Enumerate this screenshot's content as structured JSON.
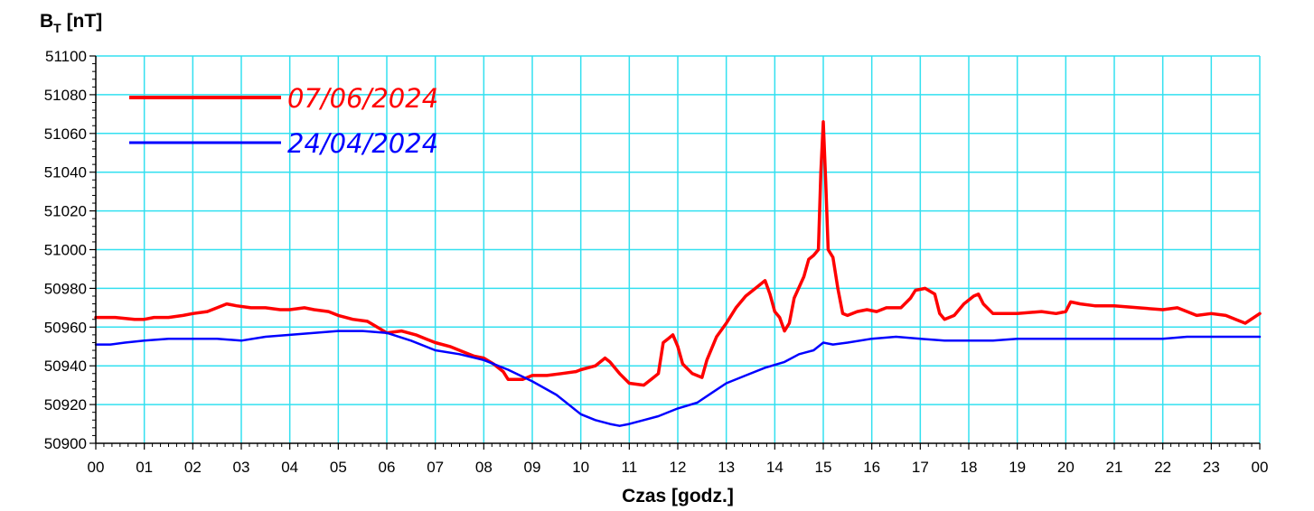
{
  "chart_data": {
    "type": "line",
    "ylabel_main": "B",
    "ylabel_sub": "T",
    "ylabel_unit": " [nT]",
    "xlabel": "Czas [godz.]",
    "xlim": [
      0,
      24
    ],
    "ylim": [
      50900,
      51100
    ],
    "grid": true,
    "legend_position": "top-left",
    "x_ticks": [
      "00",
      "01",
      "02",
      "03",
      "04",
      "05",
      "06",
      "07",
      "08",
      "09",
      "10",
      "11",
      "12",
      "13",
      "14",
      "15",
      "16",
      "17",
      "18",
      "19",
      "20",
      "21",
      "22",
      "23",
      "00"
    ],
    "y_ticks": [
      "51100",
      "51080",
      "51060",
      "51040",
      "51020",
      "51000",
      "50980",
      "50960",
      "50940",
      "50920",
      "50900"
    ],
    "colors": {
      "grid": "#33e0f0",
      "axis": "#000000"
    },
    "series": [
      {
        "name": "07/06/2024",
        "color": "#ff0000",
        "points": [
          [
            0,
            50965
          ],
          [
            0.4,
            50965
          ],
          [
            0.8,
            50964
          ],
          [
            1.0,
            50964
          ],
          [
            1.2,
            50965
          ],
          [
            1.5,
            50965
          ],
          [
            1.8,
            50966
          ],
          [
            2.0,
            50967
          ],
          [
            2.3,
            50968
          ],
          [
            2.5,
            50970
          ],
          [
            2.7,
            50972
          ],
          [
            2.9,
            50971
          ],
          [
            3.2,
            50970
          ],
          [
            3.5,
            50970
          ],
          [
            3.8,
            50969
          ],
          [
            4.0,
            50969
          ],
          [
            4.3,
            50970
          ],
          [
            4.5,
            50969
          ],
          [
            4.8,
            50968
          ],
          [
            5.0,
            50966
          ],
          [
            5.3,
            50964
          ],
          [
            5.6,
            50963
          ],
          [
            5.8,
            50960
          ],
          [
            6.0,
            50957
          ],
          [
            6.3,
            50958
          ],
          [
            6.6,
            50956
          ],
          [
            6.8,
            50954
          ],
          [
            7.0,
            50952
          ],
          [
            7.3,
            50950
          ],
          [
            7.6,
            50947
          ],
          [
            7.8,
            50945
          ],
          [
            8.0,
            50944
          ],
          [
            8.2,
            50941
          ],
          [
            8.4,
            50937
          ],
          [
            8.5,
            50933
          ],
          [
            8.8,
            50933
          ],
          [
            9.0,
            50935
          ],
          [
            9.3,
            50935
          ],
          [
            9.6,
            50936
          ],
          [
            9.9,
            50937
          ],
          [
            10.0,
            50938
          ],
          [
            10.3,
            50940
          ],
          [
            10.5,
            50944
          ],
          [
            10.6,
            50942
          ],
          [
            10.8,
            50936
          ],
          [
            11.0,
            50931
          ],
          [
            11.3,
            50930
          ],
          [
            11.5,
            50934
          ],
          [
            11.6,
            50936
          ],
          [
            11.7,
            50952
          ],
          [
            11.8,
            50954
          ],
          [
            11.9,
            50956
          ],
          [
            12.0,
            50950
          ],
          [
            12.1,
            50941
          ],
          [
            12.3,
            50936
          ],
          [
            12.5,
            50934
          ],
          [
            12.6,
            50943
          ],
          [
            12.8,
            50955
          ],
          [
            13.0,
            50962
          ],
          [
            13.2,
            50970
          ],
          [
            13.4,
            50976
          ],
          [
            13.6,
            50980
          ],
          [
            13.8,
            50984
          ],
          [
            13.9,
            50977
          ],
          [
            14.0,
            50968
          ],
          [
            14.1,
            50965
          ],
          [
            14.2,
            50958
          ],
          [
            14.3,
            50962
          ],
          [
            14.4,
            50975
          ],
          [
            14.6,
            50986
          ],
          [
            14.7,
            50995
          ],
          [
            14.8,
            50997
          ],
          [
            14.9,
            51000
          ],
          [
            14.95,
            51040
          ],
          [
            15.0,
            51066
          ],
          [
            15.05,
            51035
          ],
          [
            15.1,
            51000
          ],
          [
            15.2,
            50996
          ],
          [
            15.3,
            50980
          ],
          [
            15.4,
            50967
          ],
          [
            15.5,
            50966
          ],
          [
            15.7,
            50968
          ],
          [
            15.9,
            50969
          ],
          [
            16.1,
            50968
          ],
          [
            16.3,
            50970
          ],
          [
            16.6,
            50970
          ],
          [
            16.8,
            50975
          ],
          [
            16.9,
            50979
          ],
          [
            17.1,
            50980
          ],
          [
            17.3,
            50977
          ],
          [
            17.4,
            50967
          ],
          [
            17.5,
            50964
          ],
          [
            17.7,
            50966
          ],
          [
            17.9,
            50972
          ],
          [
            18.1,
            50976
          ],
          [
            18.2,
            50977
          ],
          [
            18.3,
            50972
          ],
          [
            18.5,
            50967
          ],
          [
            18.8,
            50967
          ],
          [
            19.0,
            50967
          ],
          [
            19.5,
            50968
          ],
          [
            19.8,
            50967
          ],
          [
            20.0,
            50968
          ],
          [
            20.1,
            50973
          ],
          [
            20.3,
            50972
          ],
          [
            20.6,
            50971
          ],
          [
            21.0,
            50971
          ],
          [
            21.5,
            50970
          ],
          [
            22.0,
            50969
          ],
          [
            22.3,
            50970
          ],
          [
            22.5,
            50968
          ],
          [
            22.7,
            50966
          ],
          [
            23.0,
            50967
          ],
          [
            23.3,
            50966
          ],
          [
            23.5,
            50964
          ],
          [
            23.7,
            50962
          ],
          [
            24.0,
            50967
          ]
        ]
      },
      {
        "name": "24/04/2024",
        "color": "#0000ff",
        "points": [
          [
            0,
            50951
          ],
          [
            0.3,
            50951
          ],
          [
            0.6,
            50952
          ],
          [
            1.0,
            50953
          ],
          [
            1.5,
            50954
          ],
          [
            2.0,
            50954
          ],
          [
            2.5,
            50954
          ],
          [
            3.0,
            50953
          ],
          [
            3.5,
            50955
          ],
          [
            4.0,
            50956
          ],
          [
            4.5,
            50957
          ],
          [
            5.0,
            50958
          ],
          [
            5.5,
            50958
          ],
          [
            6.0,
            50957
          ],
          [
            6.5,
            50953
          ],
          [
            7.0,
            50948
          ],
          [
            7.5,
            50946
          ],
          [
            8.0,
            50943
          ],
          [
            8.5,
            50938
          ],
          [
            9.0,
            50932
          ],
          [
            9.5,
            50925
          ],
          [
            9.8,
            50919
          ],
          [
            10.0,
            50915
          ],
          [
            10.3,
            50912
          ],
          [
            10.6,
            50910
          ],
          [
            10.8,
            50909
          ],
          [
            11.0,
            50910
          ],
          [
            11.3,
            50912
          ],
          [
            11.6,
            50914
          ],
          [
            12.0,
            50918
          ],
          [
            12.4,
            50921
          ],
          [
            12.7,
            50926
          ],
          [
            13.0,
            50931
          ],
          [
            13.4,
            50935
          ],
          [
            13.8,
            50939
          ],
          [
            14.2,
            50942
          ],
          [
            14.5,
            50946
          ],
          [
            14.8,
            50948
          ],
          [
            15.0,
            50952
          ],
          [
            15.2,
            50951
          ],
          [
            15.5,
            50952
          ],
          [
            16.0,
            50954
          ],
          [
            16.5,
            50955
          ],
          [
            17.0,
            50954
          ],
          [
            17.5,
            50953
          ],
          [
            18.0,
            50953
          ],
          [
            18.5,
            50953
          ],
          [
            19.0,
            50954
          ],
          [
            20.0,
            50954
          ],
          [
            21.0,
            50954
          ],
          [
            22.0,
            50954
          ],
          [
            22.5,
            50955
          ],
          [
            23.0,
            50955
          ],
          [
            23.5,
            50955
          ],
          [
            24.0,
            50955
          ]
        ]
      }
    ]
  }
}
